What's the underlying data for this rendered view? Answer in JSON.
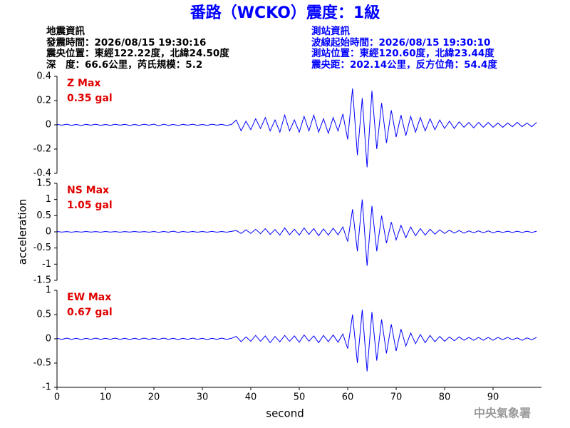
{
  "header": {
    "title": "番路（WCKO）震度：1級",
    "left": [
      "地震資訊",
      "發震時間：2026/08/15 19:30:16",
      "震央位置：東經122.22度，北緯24.50度",
      "深　度：66.6公里，芮氏規模：5.2"
    ],
    "right": [
      "測站資訊",
      "波線起始時間：2026/08/15 19:30:10",
      "測站位置：東經120.60度，北緯23.44度",
      "震央距：202.14公里，反方位角：54.4度"
    ]
  },
  "footer": "中央氣象署",
  "chart_data": [
    {
      "type": "line",
      "annotations": [
        "Z Max",
        "0.35 gal"
      ],
      "color": "#0000ff",
      "xlim": [
        0,
        100
      ],
      "ylim": [
        -0.4,
        0.4
      ],
      "yticks": [
        -0.4,
        -0.2,
        0,
        0.2,
        0.4
      ],
      "x": [
        0,
        1,
        2,
        3,
        4,
        5,
        6,
        7,
        8,
        9,
        10,
        11,
        12,
        13,
        14,
        15,
        16,
        17,
        18,
        19,
        20,
        21,
        22,
        23,
        24,
        25,
        26,
        27,
        28,
        29,
        30,
        31,
        32,
        33,
        34,
        35,
        36,
        37,
        38,
        39,
        40,
        41,
        42,
        43,
        44,
        45,
        46,
        47,
        48,
        49,
        50,
        51,
        52,
        53,
        54,
        55,
        56,
        57,
        58,
        59,
        60,
        61,
        62,
        63,
        64,
        65,
        66,
        67,
        68,
        69,
        70,
        71,
        72,
        73,
        74,
        75,
        76,
        77,
        78,
        79,
        80,
        81,
        82,
        83,
        84,
        85,
        86,
        87,
        88,
        89,
        90,
        91,
        92,
        93,
        94,
        95,
        96,
        97,
        98,
        99
      ],
      "values": [
        0.004,
        -0.003,
        0.005,
        -0.004,
        0.003,
        -0.005,
        0.004,
        -0.003,
        0.005,
        -0.004,
        0.003,
        -0.004,
        0.005,
        -0.003,
        0.004,
        -0.005,
        0.003,
        -0.004,
        0.005,
        -0.003,
        0.006,
        -0.008,
        0.005,
        -0.004,
        0.003,
        -0.005,
        0.004,
        -0.003,
        0.005,
        -0.004,
        0.003,
        -0.004,
        0.005,
        -0.003,
        0.004,
        -0.005,
        0.003,
        0.04,
        -0.05,
        0.03,
        -0.04,
        0.05,
        -0.03,
        0.06,
        -0.05,
        0.04,
        -0.06,
        0.08,
        -0.05,
        0.04,
        -0.06,
        0.07,
        -0.05,
        0.08,
        -0.06,
        0.05,
        -0.07,
        0.06,
        -0.05,
        0.09,
        -0.12,
        0.3,
        -0.25,
        0.22,
        -0.35,
        0.28,
        -0.2,
        0.18,
        -0.15,
        0.12,
        -0.1,
        0.08,
        -0.09,
        0.07,
        -0.06,
        0.06,
        -0.05,
        0.05,
        -0.04,
        0.04,
        -0.03,
        0.03,
        -0.03,
        0.025,
        -0.02,
        0.02,
        -0.025,
        0.02,
        -0.02,
        0.02,
        -0.02,
        0.015,
        -0.02,
        0.015,
        -0.015,
        0.02,
        -0.015,
        0.015,
        -0.015,
        0.02
      ]
    },
    {
      "type": "line",
      "annotations": [
        "NS Max",
        "1.05 gal"
      ],
      "color": "#0000ff",
      "ylabel": "acceleration",
      "xlim": [
        0,
        100
      ],
      "ylim": [
        -1.5,
        1.5
      ],
      "yticks": [
        -1.5,
        -1,
        -0.5,
        0,
        0.5,
        1,
        1.5
      ],
      "x": [
        0,
        1,
        2,
        3,
        4,
        5,
        6,
        7,
        8,
        9,
        10,
        11,
        12,
        13,
        14,
        15,
        16,
        17,
        18,
        19,
        20,
        21,
        22,
        23,
        24,
        25,
        26,
        27,
        28,
        29,
        30,
        31,
        32,
        33,
        34,
        35,
        36,
        37,
        38,
        39,
        40,
        41,
        42,
        43,
        44,
        45,
        46,
        47,
        48,
        49,
        50,
        51,
        52,
        53,
        54,
        55,
        56,
        57,
        58,
        59,
        60,
        61,
        62,
        63,
        64,
        65,
        66,
        67,
        68,
        69,
        70,
        71,
        72,
        73,
        74,
        75,
        76,
        77,
        78,
        79,
        80,
        81,
        82,
        83,
        84,
        85,
        86,
        87,
        88,
        89,
        90,
        91,
        92,
        93,
        94,
        95,
        96,
        97,
        98,
        99
      ],
      "values": [
        0.01,
        -0.008,
        0.009,
        -0.01,
        0.008,
        -0.009,
        0.01,
        -0.008,
        0.009,
        -0.01,
        0.01,
        -0.008,
        0.009,
        -0.01,
        0.008,
        -0.009,
        0.01,
        -0.008,
        0.009,
        -0.01,
        0.012,
        -0.015,
        0.01,
        -0.01,
        0.02,
        -0.015,
        0.01,
        -0.012,
        0.01,
        -0.01,
        0.01,
        -0.012,
        0.015,
        -0.01,
        0.012,
        -0.01,
        0.015,
        0.04,
        -0.05,
        0.06,
        -0.05,
        0.08,
        -0.06,
        0.1,
        -0.08,
        0.07,
        -0.1,
        0.12,
        -0.09,
        0.08,
        -0.1,
        0.12,
        -0.08,
        0.1,
        -0.12,
        0.09,
        -0.1,
        0.11,
        -0.09,
        0.15,
        -0.3,
        0.7,
        -0.6,
        1.0,
        -1.05,
        0.8,
        -0.6,
        0.5,
        -0.35,
        0.3,
        -0.25,
        0.2,
        -0.18,
        0.15,
        -0.12,
        0.1,
        -0.1,
        0.08,
        -0.07,
        0.06,
        -0.05,
        0.05,
        -0.04,
        0.04,
        -0.04,
        0.03,
        -0.03,
        0.03,
        -0.03,
        0.03,
        -0.03,
        0.02,
        -0.02,
        0.02,
        -0.02,
        0.02,
        -0.02,
        0.02,
        -0.02,
        0.02
      ]
    },
    {
      "type": "line",
      "annotations": [
        "EW Max",
        "0.67 gal"
      ],
      "color": "#0000ff",
      "xlabel": "second",
      "xlim": [
        0,
        100
      ],
      "xticks": [
        0,
        10,
        20,
        30,
        40,
        50,
        60,
        70,
        80,
        90
      ],
      "ylim": [
        -1,
        1
      ],
      "yticks": [
        -1,
        -0.5,
        0,
        0.5,
        1
      ],
      "x": [
        0,
        1,
        2,
        3,
        4,
        5,
        6,
        7,
        8,
        9,
        10,
        11,
        12,
        13,
        14,
        15,
        16,
        17,
        18,
        19,
        20,
        21,
        22,
        23,
        24,
        25,
        26,
        27,
        28,
        29,
        30,
        31,
        32,
        33,
        34,
        35,
        36,
        37,
        38,
        39,
        40,
        41,
        42,
        43,
        44,
        45,
        46,
        47,
        48,
        49,
        50,
        51,
        52,
        53,
        54,
        55,
        56,
        57,
        58,
        59,
        60,
        61,
        62,
        63,
        64,
        65,
        66,
        67,
        68,
        69,
        70,
        71,
        72,
        73,
        74,
        75,
        76,
        77,
        78,
        79,
        80,
        81,
        82,
        83,
        84,
        85,
        86,
        87,
        88,
        89,
        90,
        91,
        92,
        93,
        94,
        95,
        96,
        97,
        98,
        99
      ],
      "values": [
        0.01,
        -0.01,
        0.015,
        -0.01,
        0.01,
        -0.015,
        0.01,
        -0.01,
        0.015,
        -0.01,
        0.01,
        -0.01,
        0.015,
        -0.01,
        0.01,
        -0.015,
        0.01,
        -0.01,
        0.015,
        -0.01,
        0.01,
        -0.01,
        0.015,
        -0.01,
        0.01,
        -0.015,
        0.01,
        -0.01,
        0.015,
        -0.01,
        0.01,
        -0.015,
        0.01,
        -0.01,
        0.015,
        -0.01,
        0.01,
        0.05,
        -0.06,
        0.04,
        -0.05,
        0.07,
        -0.05,
        0.06,
        -0.08,
        0.05,
        -0.06,
        0.07,
        -0.05,
        0.06,
        -0.07,
        0.08,
        -0.05,
        0.06,
        -0.08,
        0.07,
        -0.06,
        0.08,
        -0.07,
        0.1,
        -0.2,
        0.5,
        -0.5,
        0.6,
        -0.67,
        0.55,
        -0.45,
        0.4,
        -0.3,
        0.3,
        -0.25,
        0.2,
        -0.15,
        0.12,
        -0.1,
        0.09,
        -0.08,
        0.07,
        -0.06,
        0.05,
        -0.05,
        0.04,
        -0.04,
        0.04,
        -0.03,
        0.03,
        -0.03,
        0.03,
        -0.03,
        0.03,
        -0.03,
        0.03,
        -0.02,
        0.03,
        -0.02,
        0.02,
        -0.03,
        0.02,
        -0.02,
        0.03
      ]
    }
  ]
}
